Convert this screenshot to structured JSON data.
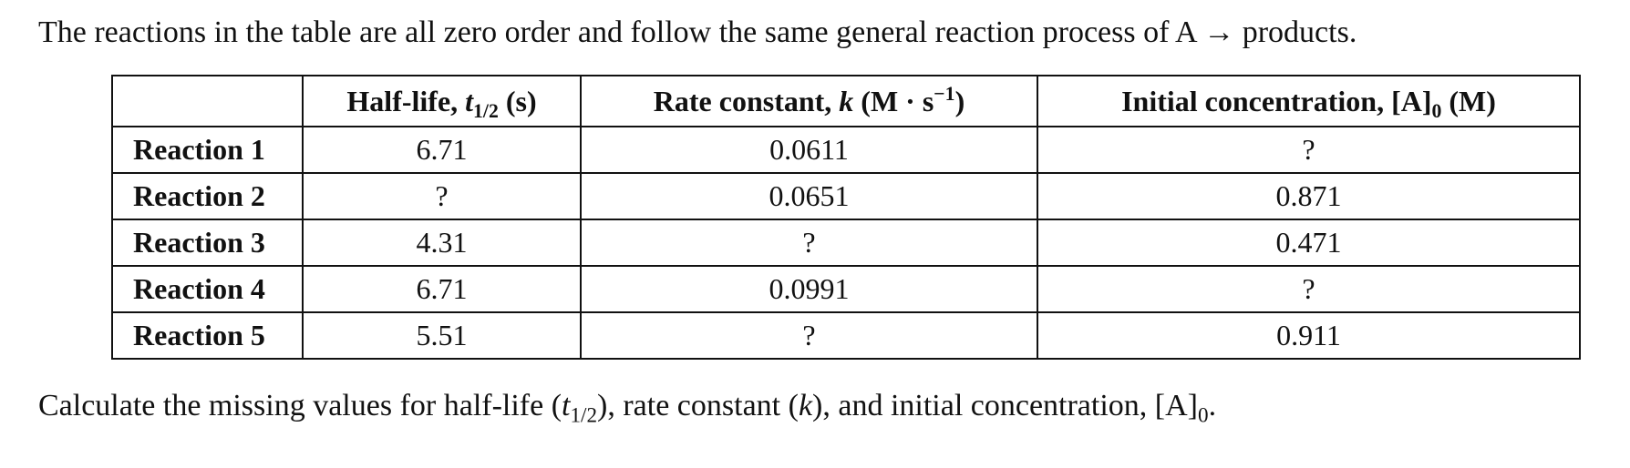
{
  "intro": {
    "text": "The reactions in the table are all zero order and follow the same general reaction process of A → products."
  },
  "table": {
    "headers": {
      "blank": "",
      "halflife": {
        "label": "Half-life,",
        "var": "t",
        "var_sub": "1/2",
        "unit": "(s)"
      },
      "rate": {
        "label": "Rate constant,",
        "var": "k",
        "unit_pre": "(M · s",
        "unit_sup": "−1",
        "unit_post": ")"
      },
      "initial": {
        "label": "Initial concentration, [A]",
        "sub": "0",
        "unit": "(M)"
      }
    },
    "rows": [
      {
        "label": "Reaction 1",
        "halflife": "6.71",
        "rate": "0.0611",
        "initial": "?"
      },
      {
        "label": "Reaction 2",
        "halflife": "?",
        "rate": "0.0651",
        "initial": "0.871"
      },
      {
        "label": "Reaction 3",
        "halflife": "4.31",
        "rate": "?",
        "initial": "0.471"
      },
      {
        "label": "Reaction 4",
        "halflife": "6.71",
        "rate": "0.0991",
        "initial": "?"
      },
      {
        "label": "Reaction 5",
        "halflife": "5.51",
        "rate": "?",
        "initial": "0.911"
      }
    ]
  },
  "outro": {
    "part1": "Calculate the missing values for half-life (",
    "var_t": "t",
    "var_t_sub": "1/2",
    "part2": "), rate constant (",
    "var_k": "k",
    "part3": "), and initial concentration, [A]",
    "sub0": "0",
    "part4": "."
  }
}
